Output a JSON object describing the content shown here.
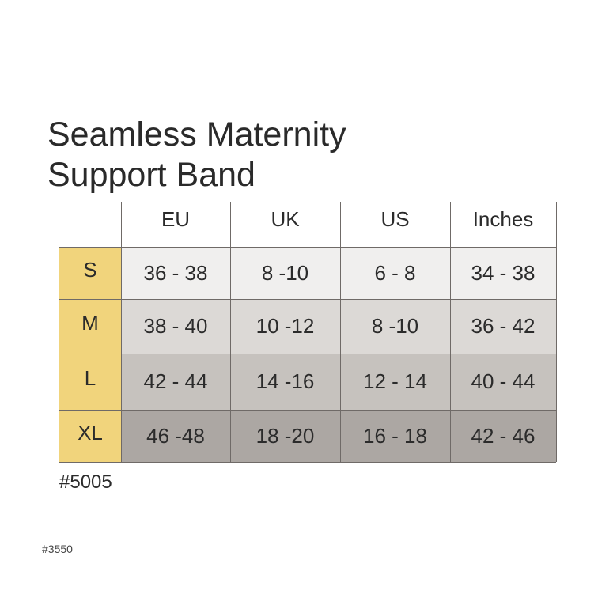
{
  "title": [
    "Seamless Maternity",
    "Support Band"
  ],
  "table": {
    "headers": [
      "EU",
      "UK",
      "US",
      "Inches"
    ],
    "rows": [
      [
        "S",
        "36 - 38",
        "8 -10",
        "6 - 8",
        "34 - 38"
      ],
      [
        "M",
        "38 - 40",
        "10 -12",
        "8 -10",
        "36 - 42"
      ],
      [
        "L",
        "42 - 44",
        "14 -16",
        "12 - 14",
        "40 - 44"
      ],
      [
        "XL",
        "46 -48",
        "18 -20",
        "16 - 18",
        "42 - 46"
      ]
    ]
  },
  "footer": {
    "code": "#5005",
    "cropped_code": "#3550"
  }
}
